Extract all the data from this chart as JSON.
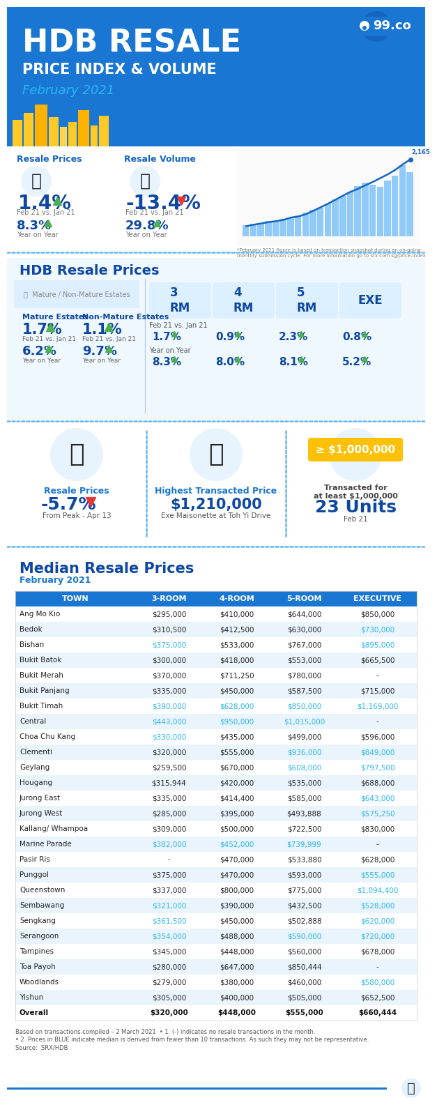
{
  "bg_blue": "#1976D2",
  "header_bg": "#1976D2",
  "accent_blue": "#1976D2",
  "text_blue": "#1565C0",
  "cyan_blue": "#29B6F6",
  "dark_blue": "#0D47A1",
  "teal_green": "#26C6DA",
  "red": "#E53935",
  "green": "#4CAF50",
  "orange": "#FFA726",
  "yellow": "#FFC107",
  "white": "#FFFFFF",
  "off_white": "#F5F9FF",
  "light_gray": "#E8F4FD",
  "mid_gray": "#BDBDBD",
  "table_header_bg": "#1976D2",
  "table_alt_bg": "#EAF4FC",
  "dotted_line_color": "#64B5F6",
  "title_line1": "HDB RESALE",
  "title_line2": "PRICE INDEX & VOLUME",
  "title_line3": "February 2021",
  "section2_title": "HDB Resale Prices",
  "section3_title": "Median Resale Prices",
  "section3_subtitle": "February 2021",
  "resale_price_label": "Resale Prices",
  "resale_volume_label": "Resale Volume",
  "resale_price_val": "1.4%",
  "resale_price_period": "Feb 21 vs. Jan 21",
  "resale_price_yoy": "8.3%",
  "resale_price_yoy_label": "Year on Year",
  "resale_vol_val": "-13.4%",
  "resale_vol_period": "Feb 21 vs. Jan 21",
  "resale_vol_yoy": "29.8%",
  "resale_vol_yoy_label": "Year on Year",
  "mature_label": "Mature Estates",
  "nonmature_label": "Non-Mature Estates",
  "mature_mom": "1.7%",
  "mature_mom_period": "Feb 21 vs. Jan 21",
  "mature_yoy": "6.2%",
  "mature_yoy_label": "Year on Year",
  "nonmature_mom": "1.1%",
  "nonmature_mom_period": "Feb 21 vs. Jan 21",
  "nonmature_yoy": "9.7%",
  "nonmature_yoy_label": "Year on Year",
  "room3_mom": "1.7%",
  "room4_mom": "0.9%",
  "room5_mom": "2.3%",
  "roomexe_mom": "0.8%",
  "room3_yoy": "8.3%",
  "room4_yoy": "8.0%",
  "room5_yoy": "8.1%",
  "roomexe_yoy": "5.2%",
  "peak_label": "Resale Prices",
  "peak_val": "-5.7%",
  "peak_desc": "From Peak - Apr 13",
  "highest_label": "Highest Transacted Price",
  "highest_val": "$1,210,000",
  "highest_desc": "Exe Maisonette at Toh Yi Drive",
  "million_label": "Transacted for\nat least $1,000,000",
  "million_units": "23 Units",
  "million_period": "Feb 21",
  "table_columns": [
    "TOWN",
    "3-ROOM",
    "4-ROOM",
    "5-ROOM",
    "EXECUTIVE"
  ],
  "table_data": [
    [
      "Ang Mo Kio",
      "$295,000",
      "$410,000",
      "$644,000",
      "$850,000"
    ],
    [
      "Bedok",
      "$310,500",
      "$412,500",
      "$630,000",
      "$730,000"
    ],
    [
      "Bishan",
      "$375,000",
      "$533,000",
      "$767,000",
      "$895,000"
    ],
    [
      "Bukit Batok",
      "$300,000",
      "$418,000",
      "$553,000",
      "$665,500"
    ],
    [
      "Bukit Merah",
      "$370,000",
      "$711,250",
      "$780,000",
      "-"
    ],
    [
      "Bukit Panjang",
      "$335,000",
      "$450,000",
      "$587,500",
      "$715,000"
    ],
    [
      "Bukit Timah",
      "$390,000",
      "$628,000",
      "$850,000",
      "$1,169,000"
    ],
    [
      "Central",
      "$443,000",
      "$950,000",
      "$1,015,000",
      "-"
    ],
    [
      "Choa Chu Kang",
      "$330,000",
      "$435,000",
      "$499,000",
      "$596,000"
    ],
    [
      "Clementi",
      "$320,000",
      "$555,000",
      "$936,000",
      "$849,000"
    ],
    [
      "Geylang",
      "$259,500",
      "$670,000",
      "$608,000",
      "$797,500"
    ],
    [
      "Hougang",
      "$315,944",
      "$420,000",
      "$535,000",
      "$688,000"
    ],
    [
      "Jurong East",
      "$335,000",
      "$414,400",
      "$585,000",
      "$643,000"
    ],
    [
      "Jurong West",
      "$285,000",
      "$395,000",
      "$493,888",
      "$575,250"
    ],
    [
      "Kallang/ Whampoa",
      "$309,000",
      "$500,000",
      "$722,500",
      "$830,000"
    ],
    [
      "Marine Parade",
      "$382,000",
      "$452,000",
      "$739,999",
      "-"
    ],
    [
      "Pasir Ris",
      "-",
      "$470,000",
      "$533,880",
      "$628,000"
    ],
    [
      "Punggol",
      "$375,000",
      "$470,000",
      "$593,000",
      "$555,000"
    ],
    [
      "Queenstown",
      "$337,000",
      "$800,000",
      "$775,000",
      "$1,094,400"
    ],
    [
      "Sembawang",
      "$321,000",
      "$390,000",
      "$432,500",
      "$528,000"
    ],
    [
      "Sengkang",
      "$361,500",
      "$450,000",
      "$502,888",
      "$620,000"
    ],
    [
      "Serangoon",
      "$354,000",
      "$488,000",
      "$590,000",
      "$720,000"
    ],
    [
      "Tampines",
      "$345,000",
      "$448,000",
      "$560,000",
      "$678,000"
    ],
    [
      "Toa Payoh",
      "$280,000",
      "$647,000",
      "$850,444",
      "-"
    ],
    [
      "Woodlands",
      "$279,000",
      "$380,000",
      "$460,000",
      "$580,000"
    ],
    [
      "Yishun",
      "$305,000",
      "$400,000",
      "$505,000",
      "$652,500"
    ],
    [
      "Overall",
      "$320,000",
      "$448,000",
      "$555,000",
      "$660,444"
    ]
  ],
  "blue_cells_map": {
    "Bedok": [
      3
    ],
    "Bishan": [
      0,
      3
    ],
    "Bukit Timah": [
      0,
      1,
      2,
      3
    ],
    "Central": [
      0,
      1,
      2
    ],
    "Choa Chu Kang": [
      0
    ],
    "Clementi": [
      2,
      3
    ],
    "Geylang": [
      2,
      3
    ],
    "Jurong East": [
      3
    ],
    "Jurong West": [
      3
    ],
    "Marine Parade": [
      0,
      1,
      2
    ],
    "Punggol": [
      3
    ],
    "Queenstown": [
      3
    ],
    "Sembawang": [
      0,
      3
    ],
    "Sengkang": [
      0,
      3
    ],
    "Serangoon": [
      0,
      2,
      3
    ],
    "Woodlands": [
      3
    ]
  },
  "footnote1": "Based on transactions compiled – 2 March 2021  • 1. (-) indicates no resale transactions in the month.",
  "footnote2": "• 2. Prices in BLUE indicate median is derived from fewer than 10 transactions. As such they may not be representative.",
  "footnote3": "Source:  SRX/HDB",
  "vol_bars": [
    380,
    420,
    460,
    510,
    530,
    580,
    650,
    720,
    800,
    900,
    980,
    1100,
    1250,
    1380,
    1520,
    1700,
    1820,
    1750,
    1680,
    1900,
    2050,
    2400,
    2165
  ],
  "price_index": [
    130.5,
    131.2,
    131.8,
    132.4,
    132.9,
    133.5,
    134.6,
    135.1,
    136.2,
    137.8,
    139.5,
    141.2,
    143.1,
    145.0,
    146.8,
    148.2,
    149.9,
    151.5,
    153.3,
    155.1,
    157.2,
    159.8,
    162.1
  ]
}
